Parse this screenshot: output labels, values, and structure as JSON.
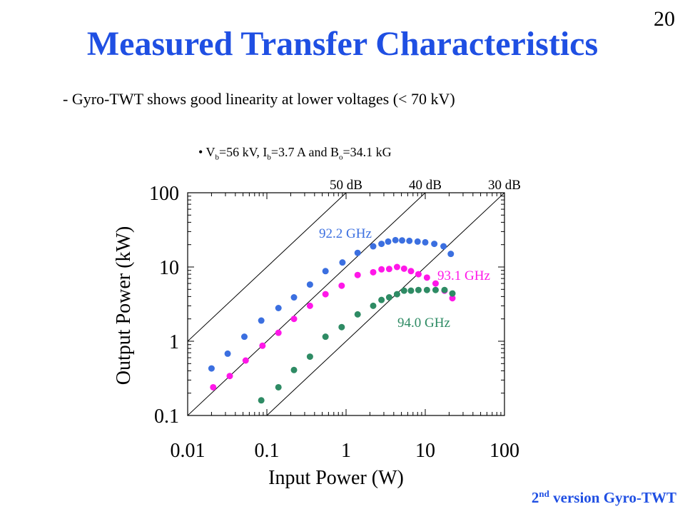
{
  "slide": {
    "title": "Measured Transfer Characteristics",
    "page_number": "20",
    "subtitle": "- Gyro-TWT shows good linearity at lower voltages (< 70 kV)",
    "condition": {
      "bullet": "•",
      "v_label": "V",
      "v_sub": "b",
      "v_value": "=56 kV, I",
      "i_sub": "b",
      "i_value": "=3.7 A and B",
      "b_sub": "o",
      "b_value": "=34.1 kG"
    },
    "footer": {
      "ordinal_num": "2",
      "ordinal_suffix": "nd",
      "text": " version Gyro-TWT"
    }
  },
  "chart_data": {
    "type": "scatter",
    "title": "",
    "xlabel": "Input Power (W)",
    "ylabel": "Output Power (kW)",
    "xscale": "log",
    "yscale": "log",
    "xlim": [
      0.01,
      100
    ],
    "ylim": [
      0.1,
      100
    ],
    "x_ticks": [
      0.01,
      0.1,
      1,
      10,
      100
    ],
    "x_tick_labels": [
      "0.01",
      "0.1",
      "1",
      "10",
      "100"
    ],
    "y_ticks": [
      0.1,
      1,
      10,
      100
    ],
    "y_tick_labels": [
      "0.1",
      "1",
      "10",
      "100"
    ],
    "grid": false,
    "gain_lines": [
      {
        "label": "50 dB",
        "gain_db": 50
      },
      {
        "label": "40 dB",
        "gain_db": 40
      },
      {
        "label": "30 dB",
        "gain_db": 30
      }
    ],
    "series": [
      {
        "name": "92.2 GHz",
        "color": "#3b6fe0",
        "x": [
          0.02,
          0.032,
          0.052,
          0.085,
          0.14,
          0.22,
          0.35,
          0.55,
          0.9,
          1.4,
          2.2,
          2.8,
          3.4,
          4.2,
          5.1,
          6.3,
          8.0,
          10.0,
          13.0,
          17.0,
          21.0
        ],
        "y": [
          0.43,
          0.68,
          1.15,
          1.9,
          2.8,
          3.9,
          5.8,
          8.8,
          11.5,
          15.5,
          19.0,
          20.5,
          22.0,
          23.0,
          22.8,
          22.5,
          22.0,
          21.5,
          20.5,
          19.0,
          15.0
        ]
      },
      {
        "name": "93.1 GHz",
        "color": "#ff17e8",
        "x": [
          0.021,
          0.034,
          0.054,
          0.088,
          0.14,
          0.22,
          0.35,
          0.55,
          0.88,
          1.4,
          2.2,
          2.8,
          3.5,
          4.4,
          5.4,
          6.6,
          8.2,
          10.5,
          13.5,
          17.5,
          22.0
        ],
        "y": [
          0.24,
          0.34,
          0.55,
          0.87,
          1.3,
          2.0,
          3.0,
          4.3,
          5.6,
          7.8,
          8.5,
          9.3,
          9.4,
          10.0,
          9.5,
          8.8,
          8.0,
          7.2,
          6.0,
          4.8,
          3.8
        ]
      },
      {
        "name": "94.0 GHz",
        "color": "#2e8b64",
        "x": [
          0.085,
          0.14,
          0.22,
          0.35,
          0.55,
          0.88,
          1.4,
          2.2,
          2.8,
          3.5,
          4.4,
          5.4,
          6.6,
          8.2,
          10.5,
          13.5,
          17.5,
          22.0
        ],
        "y": [
          0.16,
          0.24,
          0.41,
          0.62,
          1.15,
          1.55,
          2.3,
          3.0,
          3.6,
          3.9,
          4.3,
          4.8,
          4.8,
          4.9,
          4.9,
          4.9,
          4.9,
          4.4
        ]
      }
    ]
  }
}
